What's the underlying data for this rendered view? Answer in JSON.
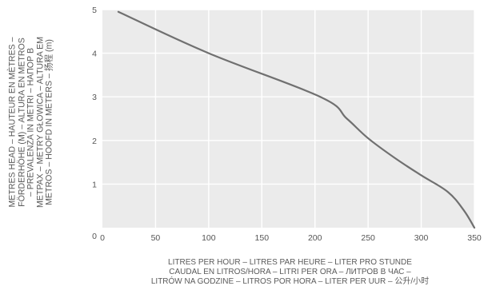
{
  "chart_data": {
    "type": "line",
    "title": "",
    "ylabel_lines": [
      "METRES HEAD – HAUTEUR EN MÈTRES –",
      "FÖRDERHÖHE (M) – ALTURA EN METROS",
      "– PREVALENZA IN METRI – НАПОР В",
      "METPAX – METRY GŁOWICA – ALTURA EM",
      "METROS – HOOFD IN METERS – 扬程 (m)"
    ],
    "xlabel_lines": [
      "LITRES PER HOUR – LITRES PAR HEURE – LITER PRO STUNDE",
      "CAUDAL EN LITROS/HORA – LITRI PER ORA – ЛИТРОВ В ЧАС –",
      "LITRÓW NA GODZINE – LITROS POR HORA  – LITER PER UUR – 公升/小时"
    ],
    "xlim": [
      0,
      350
    ],
    "ylim": [
      0,
      5
    ],
    "x_ticks": [
      "0",
      "50",
      "100",
      "150",
      "200",
      "250",
      "300",
      "350"
    ],
    "y_ticks": [
      "0",
      "1",
      "2",
      "3",
      "4",
      "5"
    ],
    "grid": true,
    "series": [
      {
        "color": "#707070",
        "points": [
          [
            15,
            4.95
          ],
          [
            100,
            4.0
          ],
          [
            205,
            3.0
          ],
          [
            230,
            2.5
          ],
          [
            250,
            2.05
          ],
          [
            275,
            1.6
          ],
          [
            300,
            1.2
          ],
          [
            325,
            0.82
          ],
          [
            340,
            0.4
          ],
          [
            350,
            0.0
          ]
        ]
      }
    ]
  }
}
